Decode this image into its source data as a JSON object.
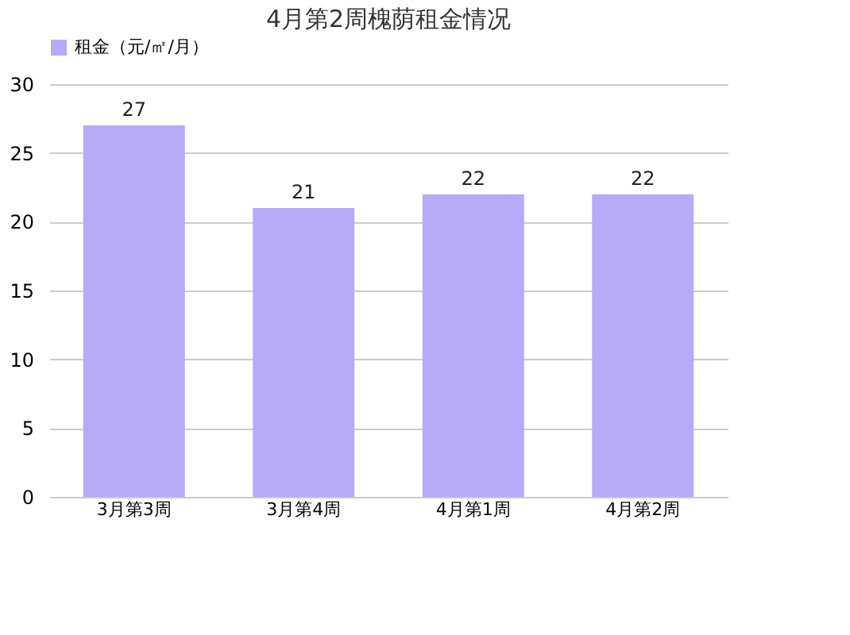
{
  "chart_data": {
    "type": "bar",
    "title": "4月第2周槐荫租金情况",
    "categories": [
      "3月第3周",
      "3月第4周",
      "4月第1周",
      "4月第2周"
    ],
    "series": [
      {
        "name": "租金（元/㎡/月）",
        "color": "#b8aaf8",
        "values": [
          27,
          21,
          22,
          22
        ]
      }
    ],
    "ylim": [
      0,
      30
    ],
    "yticks": [
      0,
      5,
      10,
      15,
      20,
      25,
      30
    ],
    "grid": "y",
    "legend": "top",
    "data_labels": true
  }
}
